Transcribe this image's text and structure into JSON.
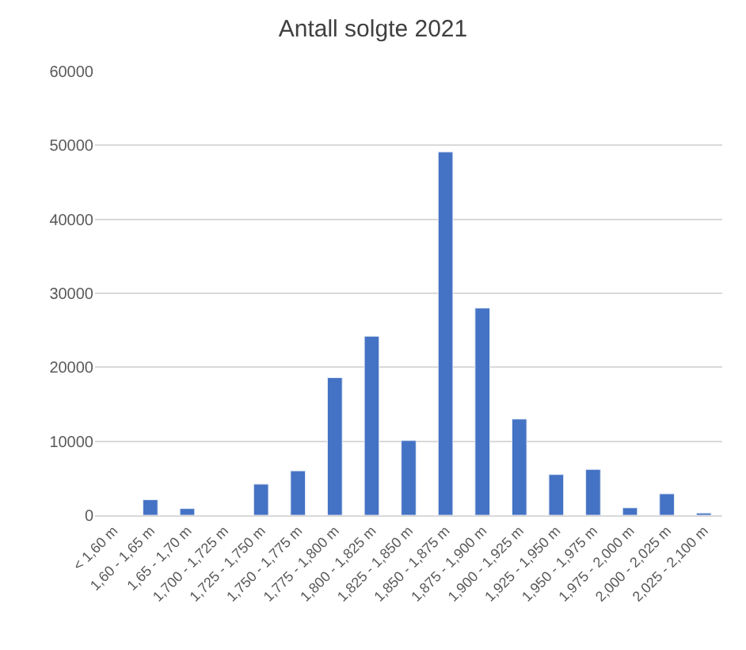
{
  "chart_data": {
    "type": "bar",
    "title": "Antall solgte 2021",
    "categories": [
      "< 1,60 m",
      "1,60 - 1,65 m",
      "1,65 - 1,70 m",
      "1,700 - 1,725 m",
      "1,725 - 1,750 m",
      "1,750 - 1,775 m",
      "1,775 - 1,800 m",
      "1,800 - 1,825 m",
      "1,825 - 1,850 m",
      "1,850 - 1,875 m",
      "1,875 - 1,900 m",
      "1,900 - 1,925 m",
      "1,925 - 1,950 m",
      "1,950 - 1,975 m",
      "1,975 - 2,000 m",
      "2,000 - 2,025 m",
      "2,025 - 2,100 m"
    ],
    "series": [
      {
        "color": "#4472c4",
        "values": [
          null,
          2100,
          900,
          null,
          4200,
          6000,
          18600,
          24200,
          10100,
          49100,
          28000,
          13000,
          5500,
          6200,
          1000,
          2900,
          300
        ]
      }
    ],
    "ylim": [
      0,
      60000
    ],
    "yticks": [
      0,
      10000,
      20000,
      30000,
      40000,
      50000,
      60000
    ],
    "grid": "y"
  }
}
